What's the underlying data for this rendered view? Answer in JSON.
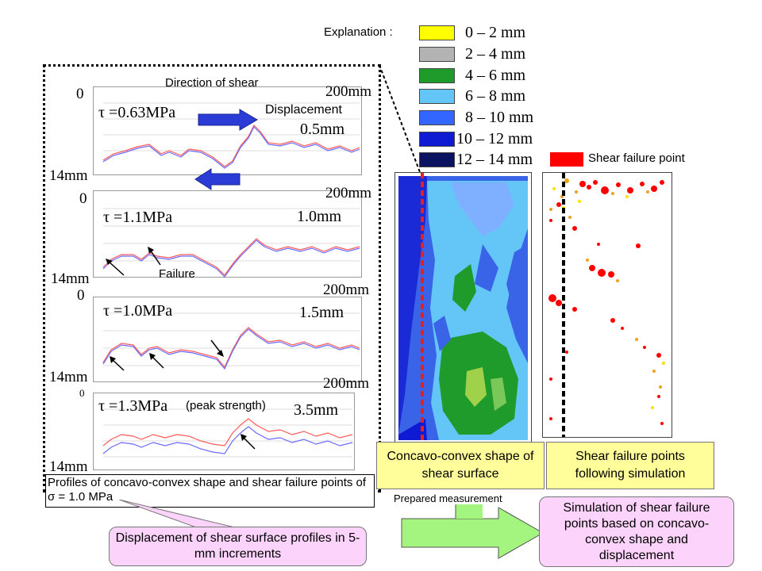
{
  "explanation": {
    "label": "Explanation :",
    "legend": [
      {
        "range": "0 – 2 mm",
        "color": "#ffff00"
      },
      {
        "range": "2 – 4 mm",
        "color": "#b3b3b3"
      },
      {
        "range": "4 – 6 mm",
        "color": "#1e9b2b"
      },
      {
        "range": "6 – 8 mm",
        "color": "#63c6f7"
      },
      {
        "range": "8 – 10 mm",
        "color": "#3366ff"
      },
      {
        "range": "10 – 12 mm",
        "color": "#0f1ad3"
      },
      {
        "range": "12 – 14 mm",
        "color": "#0b1260"
      }
    ],
    "failure_legend": {
      "label": "Shear failure point",
      "color": "#ff0000"
    }
  },
  "profiles": {
    "direction_label": "Direction of shear",
    "displacement_label": "Displacement",
    "panels": [
      {
        "tau": "τ =0.63MPa",
        "displacement": "0.5mm",
        "y_top": "0",
        "y_bottom": "14mm",
        "x_end": "200mm",
        "extra": ""
      },
      {
        "tau": "τ =1.1MPa",
        "displacement": "1.0mm",
        "y_top": "0",
        "y_bottom": "14mm",
        "x_end": "200mm",
        "extra": "Failure"
      },
      {
        "tau": "τ =1.0MPa",
        "displacement": "1.5mm",
        "y_top": "0",
        "y_bottom": "14mm",
        "x_end": "200mm",
        "extra": ""
      },
      {
        "tau": "τ =1.3MPa",
        "peak": "(peak strength)",
        "displacement": "3.5mm",
        "y_top": "0",
        "y_bottom": "14mm",
        "x_end": "200mm",
        "extra": ""
      }
    ],
    "caption": "Profiles of concavo-convex shape and shear failure points of σ = 1.0 MPa"
  },
  "boxes": {
    "shape_caption": "Concavo-convex shape of shear surface",
    "failure_caption": "Shear failure points following simulation",
    "prepared": "Prepared measurement",
    "simulation": "Simulation of shear failure points based on concavo-convex shape and displacement",
    "displacement_note": "Displacement of shear surface profiles in 5-mm increments"
  },
  "colors": {
    "arrow_blue": "#2a3bd6",
    "profile_red": "#ff5a5a",
    "profile_blue": "#6a6aff",
    "red_line": "#e8201c",
    "green_arrow": "#9ef07a"
  }
}
